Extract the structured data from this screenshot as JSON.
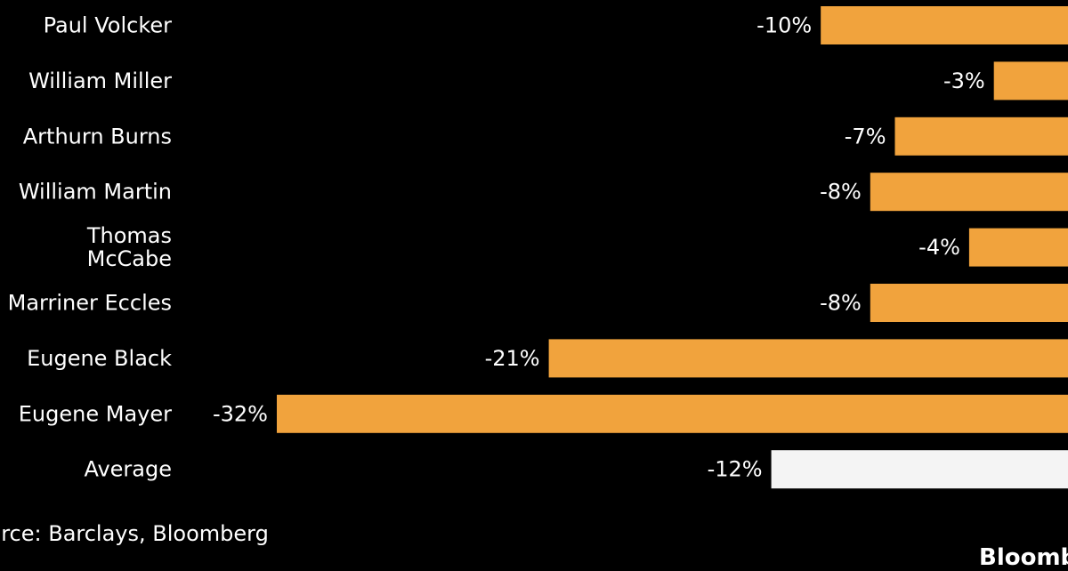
{
  "chart_data": {
    "type": "bar",
    "orientation": "horizontal",
    "categories": [
      "Paul Volcker",
      "William Miller",
      "Arthurn Burns",
      "William Martin",
      "Thomas McCabe",
      "Marriner Eccles",
      "Eugene Black",
      "Eugene Mayer",
      "Average"
    ],
    "category_lines": [
      [
        "Paul Volcker"
      ],
      [
        "William Miller"
      ],
      [
        "Arthurn Burns"
      ],
      [
        "William Martin"
      ],
      [
        "Thomas",
        "McCabe"
      ],
      [
        "Marriner Eccles"
      ],
      [
        "Eugene Black"
      ],
      [
        "Eugene Mayer"
      ],
      [
        "Average"
      ]
    ],
    "values": [
      -10,
      -3,
      -7,
      -8,
      -4,
      -8,
      -21,
      -32,
      -12
    ],
    "value_labels": [
      "-10%",
      "-3%",
      "-7%",
      "-8%",
      "-4%",
      "-8%",
      "-21%",
      "-32%",
      "-12%"
    ],
    "bar_colors": [
      "#f1a33d",
      "#f1a33d",
      "#f1a33d",
      "#f1a33d",
      "#f1a33d",
      "#f1a33d",
      "#f1a33d",
      "#f1a33d",
      "#f4f4f4"
    ],
    "background": "#000000",
    "text_color": "#ffffff",
    "xlim": [
      -32,
      0
    ],
    "grid": false,
    "legend": "none"
  },
  "footer": {
    "source": "urce: Barclays, Bloomberg",
    "brand": "Bloomb"
  }
}
